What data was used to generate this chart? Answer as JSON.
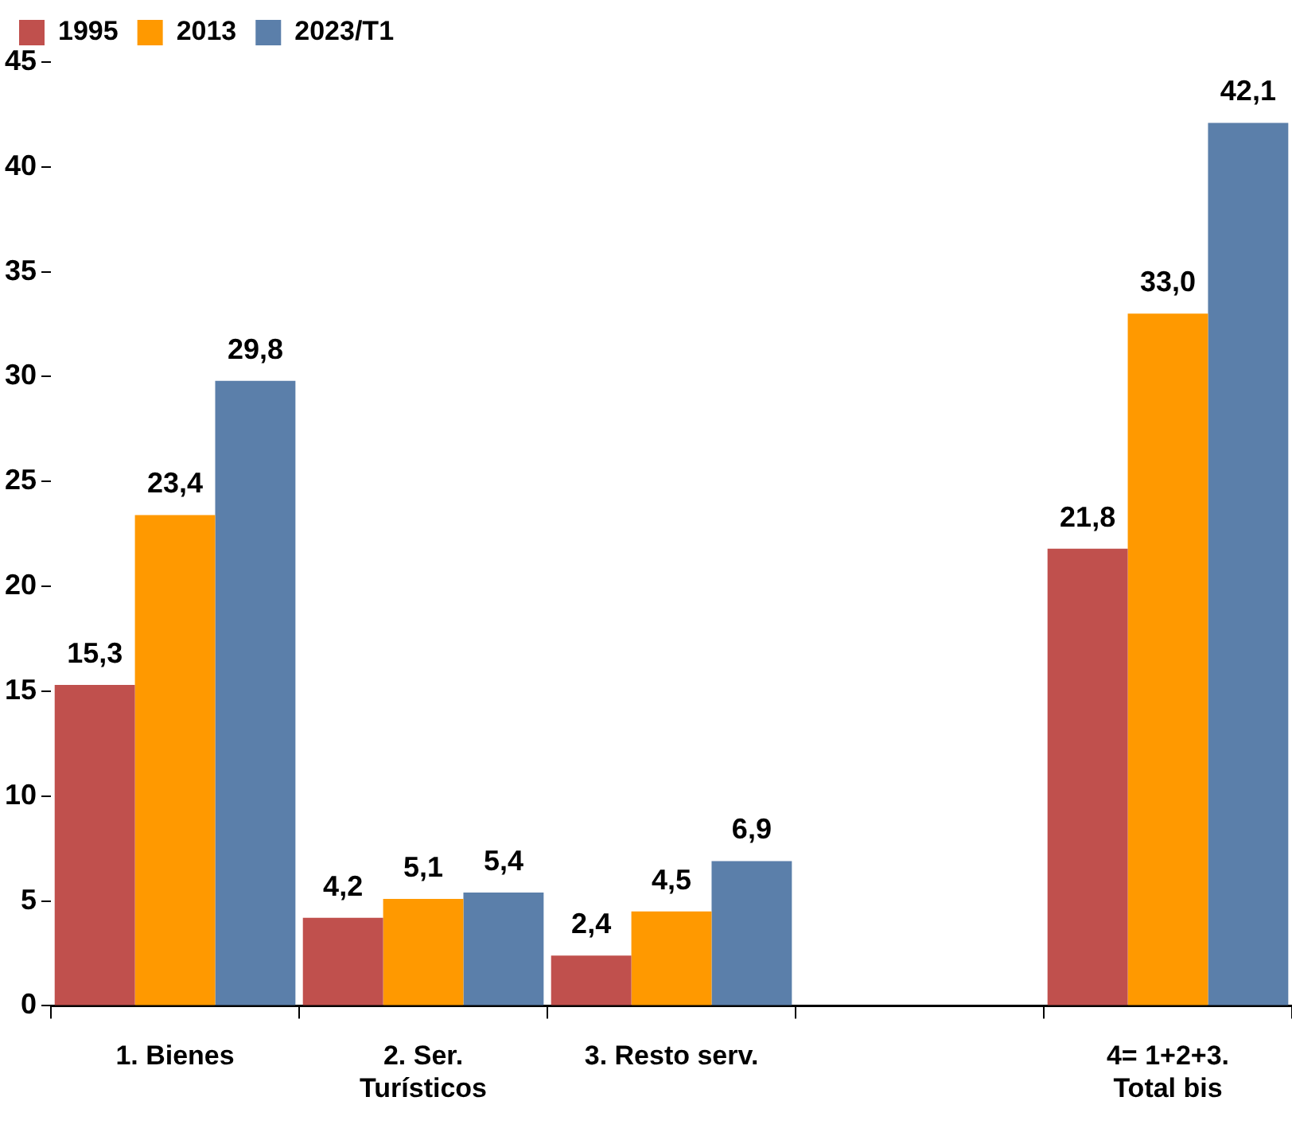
{
  "chart_data": {
    "type": "bar",
    "categories": [
      "1. Bienes",
      "2. Ser. Turísticos",
      "3. Resto serv.",
      null,
      "4= 1+2+3. Total bis"
    ],
    "series": [
      {
        "name": "1995",
        "color": "#c0504d",
        "values": [
          15.3,
          4.2,
          2.4,
          null,
          21.8
        ],
        "value_labels": [
          "15,3",
          "4,2",
          "2,4",
          null,
          "21,8"
        ]
      },
      {
        "name": "2013",
        "color": "#ff9900",
        "values": [
          23.4,
          5.1,
          4.5,
          null,
          33.0
        ],
        "value_labels": [
          "23,4",
          "5,1",
          "4,5",
          null,
          "33,0"
        ]
      },
      {
        "name": "2023/T1",
        "color": "#5b7faa",
        "values": [
          29.8,
          5.4,
          6.9,
          null,
          42.1
        ],
        "value_labels": [
          "29,8",
          "5,4",
          "6,9",
          null,
          "42,1"
        ]
      }
    ],
    "ylim": [
      0,
      45
    ],
    "yticks": [
      0,
      5,
      10,
      15,
      20,
      25,
      30,
      35,
      40,
      45
    ],
    "legend": "top left"
  }
}
